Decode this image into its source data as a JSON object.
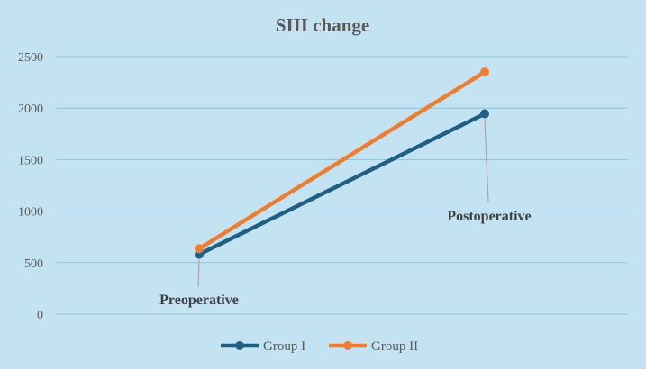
{
  "chart_data": {
    "type": "line",
    "title": "SIII change",
    "xlabel": "",
    "ylabel": "",
    "categories": [
      "Preoperative",
      "Postoperative"
    ],
    "ylim": [
      0,
      2500
    ],
    "yticks": [
      0,
      500,
      1000,
      1500,
      2000,
      2500
    ],
    "grid": true,
    "legend_position": "bottom",
    "series": [
      {
        "name": "Group I",
        "values": [
          580,
          1945
        ],
        "color": "#1f5f82"
      },
      {
        "name": "Group II",
        "values": [
          635,
          2350
        ],
        "color": "#ed7d31"
      }
    ],
    "annotations": [
      {
        "text": "Preoperative",
        "category_index": 0,
        "series_index": 0,
        "placement": "below"
      },
      {
        "text": "Postoperative",
        "category_index": 1,
        "series_index": 0,
        "placement": "below"
      }
    ],
    "colors": {
      "background": "#c3e3f3",
      "gridline": "#8ec3dc",
      "leader": "#a6a6a6"
    }
  }
}
